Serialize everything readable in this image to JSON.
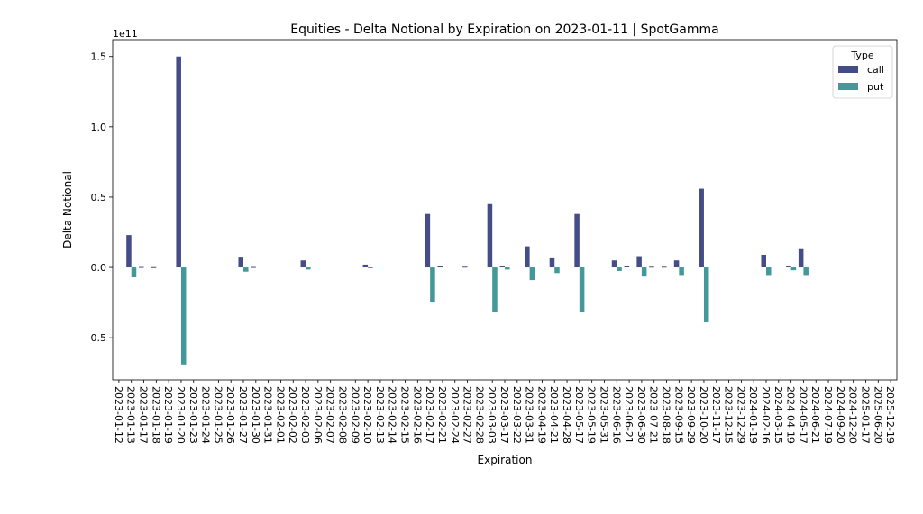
{
  "chart_data": {
    "type": "bar",
    "title": "Equities - Delta Notional by Expiration on 2023-01-11 | SpotGamma",
    "xlabel": "Expiration",
    "ylabel": "Delta Notional",
    "y_offset_label": "1e11",
    "y_scale": 100000000000,
    "ylim": [
      -0.8,
      1.62
    ],
    "yticks": [
      -0.5,
      0.0,
      0.5,
      1.0,
      1.5
    ],
    "ytick_labels": [
      "−0.5",
      "0.0",
      "0.5",
      "1.0",
      "1.5"
    ],
    "legend": {
      "title": "Type",
      "position": "top-right"
    },
    "categories": [
      "2023-01-12",
      "2023-01-13",
      "2023-01-17",
      "2023-01-18",
      "2023-01-19",
      "2023-01-20",
      "2023-01-23",
      "2023-01-24",
      "2023-01-25",
      "2023-01-26",
      "2023-01-27",
      "2023-01-30",
      "2023-01-31",
      "2023-02-01",
      "2023-02-02",
      "2023-02-03",
      "2023-02-06",
      "2023-02-07",
      "2023-02-08",
      "2023-02-09",
      "2023-02-10",
      "2023-02-13",
      "2023-02-14",
      "2023-02-15",
      "2023-02-16",
      "2023-02-17",
      "2023-02-21",
      "2023-02-24",
      "2023-02-27",
      "2023-02-28",
      "2023-03-03",
      "2023-03-17",
      "2023-03-22",
      "2023-03-31",
      "2023-04-19",
      "2023-04-21",
      "2023-04-28",
      "2023-05-17",
      "2023-05-19",
      "2023-05-31",
      "2023-06-16",
      "2023-06-21",
      "2023-06-30",
      "2023-07-21",
      "2023-08-18",
      "2023-09-15",
      "2023-09-29",
      "2023-10-20",
      "2023-11-17",
      "2023-12-15",
      "2023-12-29",
      "2024-01-19",
      "2024-02-16",
      "2024-03-15",
      "2024-04-19",
      "2024-05-17",
      "2024-06-21",
      "2024-07-19",
      "2024-09-20",
      "2024-12-20",
      "2025-01-17",
      "2025-06-20",
      "2025-12-19"
    ],
    "series": [
      {
        "name": "call",
        "color": "#454d87",
        "values": [
          0,
          0.23,
          0.003,
          0.002,
          0,
          1.5,
          0,
          0,
          0,
          0,
          0.07,
          0.003,
          0,
          0,
          0,
          0.05,
          0,
          0,
          0,
          0,
          0.02,
          0,
          0,
          0,
          0,
          0.38,
          0.01,
          0,
          0.005,
          0,
          0.45,
          0.01,
          0,
          0.15,
          0,
          0.065,
          0,
          0.38,
          0,
          0,
          0.05,
          0.01,
          0.08,
          0.005,
          0.005,
          0.05,
          0,
          0.56,
          0,
          0,
          0,
          0,
          0.09,
          0,
          0.01,
          0.13,
          0,
          0,
          0,
          0,
          0,
          0,
          0
        ]
      },
      {
        "name": "put",
        "color": "#43999a",
        "values": [
          0,
          -0.07,
          0,
          0,
          0,
          -0.69,
          0,
          0,
          0,
          0,
          -0.03,
          0,
          0,
          0,
          0,
          -0.015,
          0,
          0,
          0,
          0,
          -0.005,
          0,
          0,
          0,
          0,
          -0.25,
          0,
          0,
          0,
          0,
          -0.32,
          -0.015,
          0,
          -0.09,
          0,
          -0.04,
          0,
          -0.32,
          0,
          0,
          -0.025,
          0,
          -0.065,
          0,
          0,
          -0.06,
          0,
          -0.39,
          0,
          0,
          0,
          0,
          -0.06,
          0,
          -0.02,
          -0.06,
          0,
          0,
          0,
          0,
          0,
          0,
          0
        ]
      }
    ]
  }
}
